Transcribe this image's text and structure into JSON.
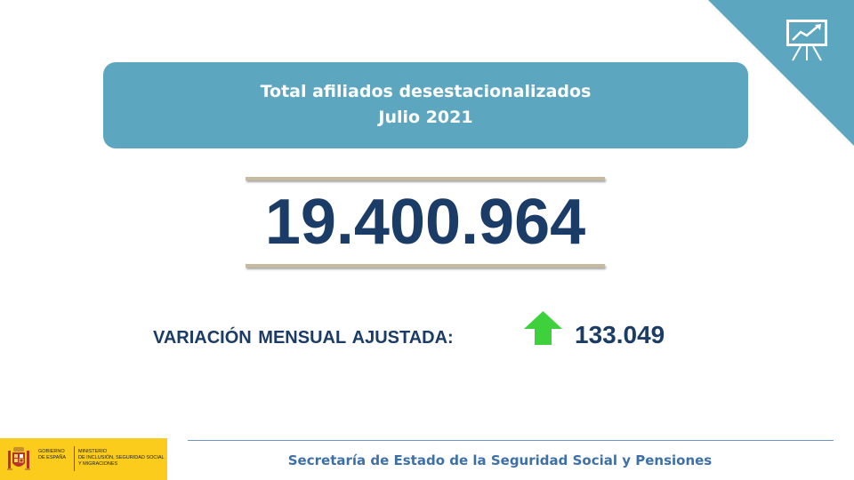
{
  "banner": {
    "line1": "Total afiliados desestacionalizados",
    "line2": "Julio 2021"
  },
  "total": {
    "value": "19.400.964"
  },
  "variation": {
    "label": "VARIACIÓN MENSUAL AJUSTADA:",
    "value": "133.049",
    "direction_icon": "green-up-arrow-icon"
  },
  "footer": {
    "text": "Secretaría de Estado de la Seguridad Social y Pensiones"
  },
  "logo": {
    "government_line1": "GOBIERNO",
    "government_line2": "DE ESPAÑA",
    "ministry_line1": "MINISTERIO",
    "ministry_line2": "DE INCLUSIÓN, SEGURIDAD SOCIAL",
    "ministry_line3": "Y MIGRACIONES"
  },
  "colors": {
    "banner_bg": "#5da6c0",
    "number_text": "#1b3c66",
    "arrow": "#3fd13b",
    "footer_text": "#3e70a8",
    "logo_bg": "#fbcc1c",
    "rule": "#c6bba0"
  }
}
